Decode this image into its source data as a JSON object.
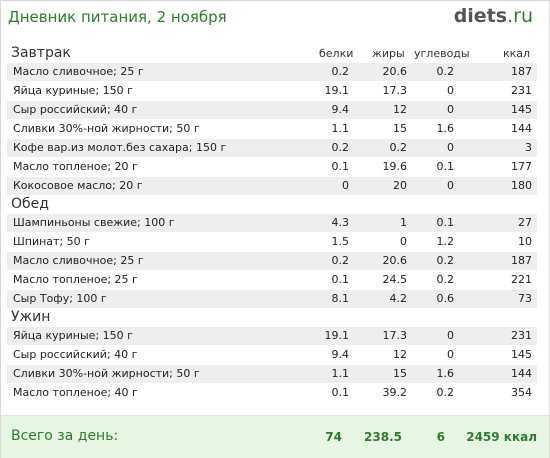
{
  "header": {
    "title": "Дневник питания, 2 ноября",
    "logo_main": "diets",
    "logo_tld": ".ru"
  },
  "columns": {
    "protein": "белки",
    "fat": "жиры",
    "carbs": "углеводы",
    "kcal": "ккал"
  },
  "meals": [
    {
      "name": "Завтрак",
      "items": [
        {
          "name": "Масло сливочное; 25 г",
          "protein": "0.2",
          "fat": "20.6",
          "carbs": "0.2",
          "kcal": "187"
        },
        {
          "name": "Яйца куриные; 150 г",
          "protein": "19.1",
          "fat": "17.3",
          "carbs": "0",
          "kcal": "231"
        },
        {
          "name": "Сыр российский; 40 г",
          "protein": "9.4",
          "fat": "12",
          "carbs": "0",
          "kcal": "145"
        },
        {
          "name": "Сливки 30%-ной жирности; 50 г",
          "protein": "1.1",
          "fat": "15",
          "carbs": "1.6",
          "kcal": "144"
        },
        {
          "name": "Кофе вар.из молот.без сахара; 150 г",
          "protein": "0.2",
          "fat": "0.2",
          "carbs": "0",
          "kcal": "3"
        },
        {
          "name": "Масло топленое; 20 г",
          "protein": "0.1",
          "fat": "19.6",
          "carbs": "0.1",
          "kcal": "177"
        },
        {
          "name": "Кокосовое масло; 20 г",
          "protein": "0",
          "fat": "20",
          "carbs": "0",
          "kcal": "180"
        }
      ]
    },
    {
      "name": "Обед",
      "items": [
        {
          "name": "Шампиньоны свежие; 100 г",
          "protein": "4.3",
          "fat": "1",
          "carbs": "0.1",
          "kcal": "27"
        },
        {
          "name": "Шпинат; 50 г",
          "protein": "1.5",
          "fat": "0",
          "carbs": "1.2",
          "kcal": "10"
        },
        {
          "name": "Масло сливочное; 25 г",
          "protein": "0.2",
          "fat": "20.6",
          "carbs": "0.2",
          "kcal": "187"
        },
        {
          "name": "Масло топленое; 25 г",
          "protein": "0.1",
          "fat": "24.5",
          "carbs": "0.2",
          "kcal": "221"
        },
        {
          "name": "Сыр Тофу; 100 г",
          "protein": "8.1",
          "fat": "4.2",
          "carbs": "0.6",
          "kcal": "73"
        }
      ]
    },
    {
      "name": "Ужин",
      "items": [
        {
          "name": "Яйца куриные; 150 г",
          "protein": "19.1",
          "fat": "17.3",
          "carbs": "0",
          "kcal": "231"
        },
        {
          "name": "Сыр российский; 40 г",
          "protein": "9.4",
          "fat": "12",
          "carbs": "0",
          "kcal": "145"
        },
        {
          "name": "Сливки 30%-ной жирности; 50 г",
          "protein": "1.1",
          "fat": "15",
          "carbs": "1.6",
          "kcal": "144"
        },
        {
          "name": "Масло топленое; 40 г",
          "protein": "0.1",
          "fat": "39.2",
          "carbs": "0.2",
          "kcal": "354"
        }
      ]
    }
  ],
  "totals": {
    "label": "Всего за день:",
    "protein": "74",
    "fat": "238.5",
    "carbs": "6",
    "kcal": "2459 ккал"
  }
}
